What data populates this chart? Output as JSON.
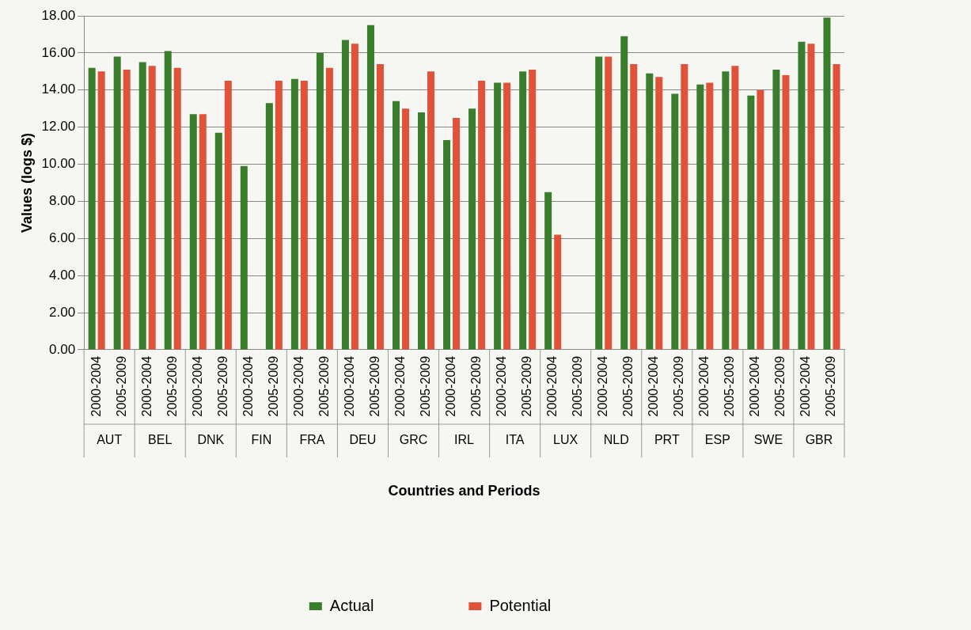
{
  "chart_data": {
    "type": "bar",
    "xlabel": "Countries and Periods",
    "ylabel": "Values (logs $)",
    "categories": [
      "2000-2004",
      "2005-2009",
      "2000-2004",
      "2005-2009",
      "2000-2004",
      "2005-2009",
      "2000-2004",
      "2005-2009",
      "2000-2004",
      "2005-2009",
      "2000-2004",
      "2005-2009",
      "2000-2004",
      "2005-2009",
      "2000-2004",
      "2005-2009",
      "2000-2004",
      "2005-2009",
      "2000-2004",
      "2005-2009",
      "2000-2004",
      "2005-2009",
      "2000-2004",
      "2005-2009",
      "2000-2004",
      "2005-2009",
      "2000-2004",
      "2005-2009",
      "2000-2004",
      "2005-2009"
    ],
    "annotations": [
      "AUT",
      "BEL",
      "DNK",
      "FIN",
      "FRA",
      "DEU",
      "GRC",
      "IRL",
      "ITA",
      "LUX",
      "NLD",
      "PRT",
      "ESP",
      "SWE",
      "GBR"
    ],
    "series": [
      {
        "name": "Actual",
        "color": "#3a7d2c",
        "values": [
          15.2,
          15.8,
          15.5,
          16.1,
          12.7,
          11.7,
          9.9,
          13.3,
          14.6,
          16.0,
          16.7,
          17.5,
          13.4,
          12.8,
          11.3,
          13.0,
          14.4,
          15.0,
          8.5,
          null,
          15.8,
          16.9,
          14.9,
          13.8,
          14.3,
          15.0,
          13.7,
          15.1,
          16.6,
          17.9
        ]
      },
      {
        "name": "Potential",
        "color": "#e0533a",
        "values": [
          15.0,
          15.1,
          15.3,
          15.2,
          12.7,
          14.5,
          null,
          14.5,
          14.5,
          15.2,
          16.5,
          15.4,
          13.0,
          15.0,
          12.5,
          14.5,
          14.4,
          15.1,
          6.2,
          null,
          15.8,
          15.4,
          14.7,
          15.4,
          14.4,
          15.3,
          14.0,
          14.8,
          16.5,
          15.4
        ]
      }
    ],
    "ylim": [
      0,
      18
    ],
    "yticks": [
      {
        "value": 0,
        "label": "0.00"
      },
      {
        "value": 2,
        "label": "2.00"
      },
      {
        "value": 4,
        "label": "4.00"
      },
      {
        "value": 6,
        "label": "6.00"
      },
      {
        "value": 8,
        "label": "8.00"
      },
      {
        "value": 10,
        "label": "10.00"
      },
      {
        "value": 12,
        "label": "12.00"
      },
      {
        "value": 14,
        "label": "14.00"
      },
      {
        "value": 16,
        "label": "16.00"
      },
      {
        "value": 18,
        "label": "18.00"
      }
    ],
    "grid": "y",
    "legend": "bottom"
  }
}
